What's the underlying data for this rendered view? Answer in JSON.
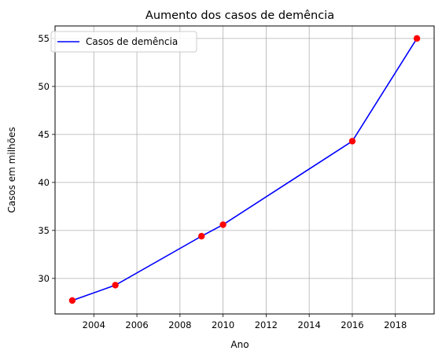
{
  "chart_data": {
    "type": "line",
    "title": "Aumento dos casos de demência",
    "xlabel": "Ano",
    "ylabel": "Casos em milhões",
    "x": [
      2003,
      2005,
      2009,
      2010,
      2016,
      2019
    ],
    "series": [
      {
        "name": "Casos de demência",
        "values": [
          27.7,
          29.3,
          34.4,
          35.6,
          44.3,
          55.0
        ],
        "line_color": "#0000ff",
        "marker_color": "#ff0000"
      }
    ],
    "xlim": [
      2002.2,
      2019.8
    ],
    "ylim": [
      26.3,
      56.3
    ],
    "xticks": [
      2004,
      2006,
      2008,
      2010,
      2012,
      2014,
      2016,
      2018
    ],
    "yticks": [
      30,
      35,
      40,
      45,
      50,
      55
    ],
    "grid": true,
    "legend": "top-left"
  }
}
